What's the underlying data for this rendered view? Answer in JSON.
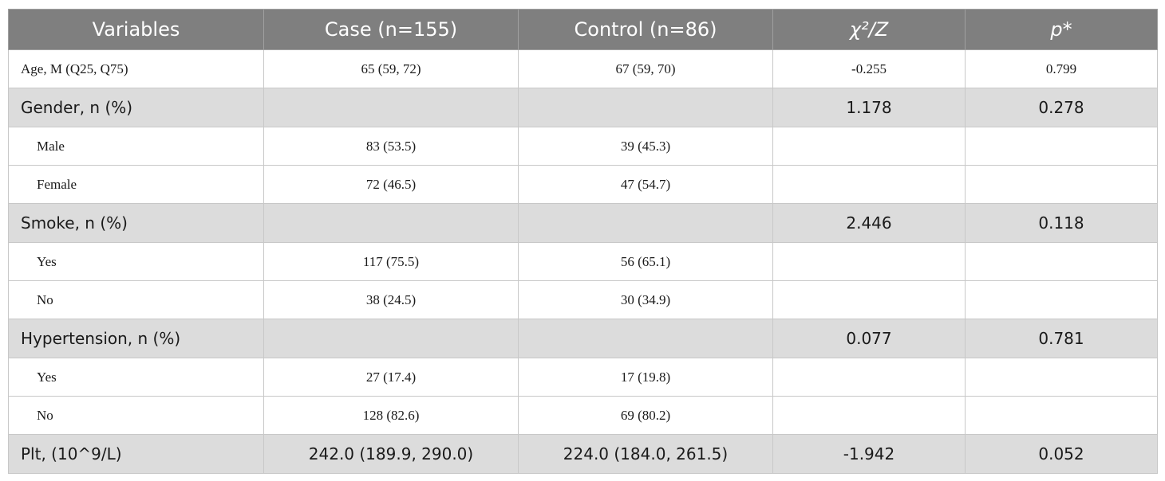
{
  "table": {
    "header": [
      "Variables",
      "Case (n=155)",
      "Control (n=86)",
      "χ²/Z",
      "p*"
    ],
    "rows": [
      {
        "variable": "Age, M (Q25, Q75)",
        "case": "65 (59, 72)",
        "control": "67 (59, 70)",
        "stat": "-0.255",
        "p": "0.799"
      },
      {
        "variable": "Gender, n (%)",
        "stat": "1.178",
        "p": "0.278"
      },
      {
        "variable": "Male",
        "case": "83 (53.5)",
        "control": "39 (45.3)"
      },
      {
        "variable": "Female",
        "case": "72 (46.5)",
        "control": "47 (54.7)"
      },
      {
        "variable": "Smoke, n (%)",
        "stat": "2.446",
        "p": "0.118"
      },
      {
        "variable": "Yes",
        "case": "117 (75.5)",
        "control": "56 (65.1)"
      },
      {
        "variable": "No",
        "case": "38 (24.5)",
        "control": "30 (34.9)"
      },
      {
        "variable": "Hypertension, n (%)",
        "stat": "0.077",
        "p": "0.781"
      },
      {
        "variable": "Yes",
        "case": "27 (17.4)",
        "control": "17 (19.8)"
      },
      {
        "variable": "No",
        "case": "128 (82.6)",
        "control": "69 (80.2)"
      },
      {
        "variable": "Plt, (10^9/L)",
        "case": "242.0 (189.9, 290.0)",
        "control": "224.0 (184.0, 261.5)",
        "stat": "-1.942",
        "p": "0.052"
      }
    ]
  }
}
